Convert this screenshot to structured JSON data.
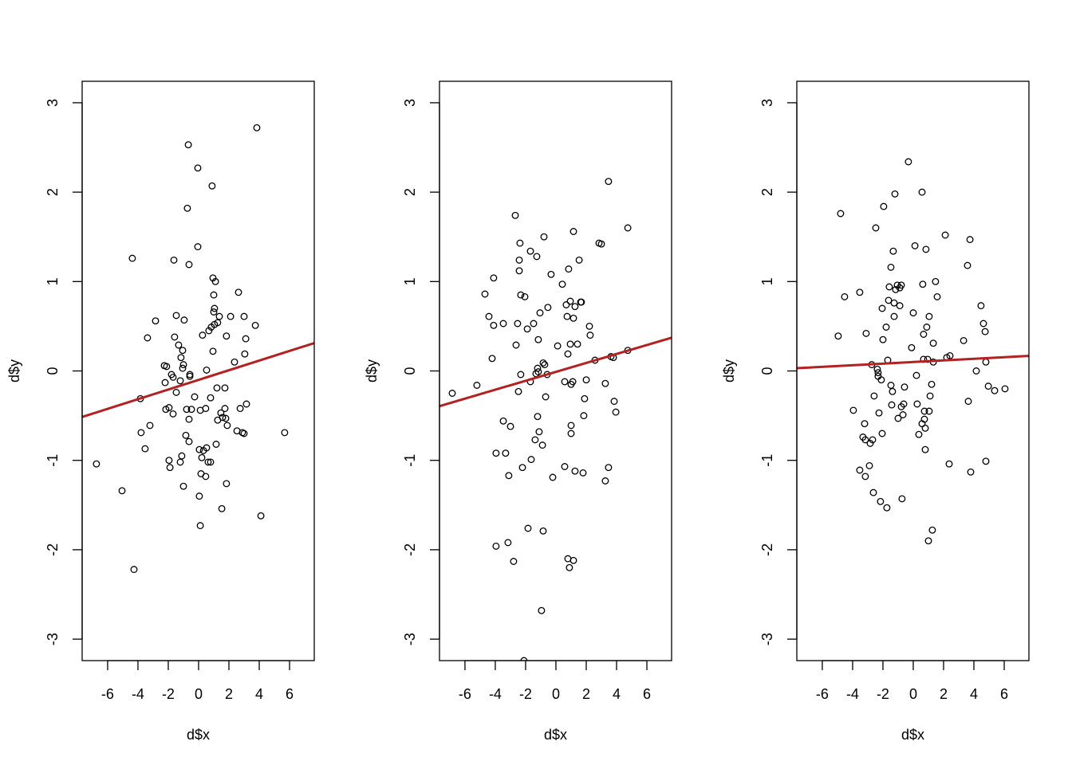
{
  "chart_data": [
    {
      "type": "scatter",
      "xlabel": "d$x",
      "ylabel": "d$y",
      "xlim": [
        -7.68,
        7.63
      ],
      "ylim": [
        -3.24,
        3.24
      ],
      "xticks": [
        -6,
        -4,
        -2,
        0,
        2,
        4,
        6
      ],
      "yticks": [
        -3,
        -2,
        -1,
        0,
        1,
        2,
        3
      ],
      "fit_line": {
        "intercept": -0.1,
        "slope": 0.054,
        "color": "#B22222"
      },
      "points": [
        [
          -6.74,
          -1.04
        ],
        [
          -5.05,
          -1.34
        ],
        [
          -4.37,
          1.26
        ],
        [
          -4.26,
          -2.22
        ],
        [
          -3.84,
          -0.31
        ],
        [
          -3.79,
          -0.69
        ],
        [
          -3.53,
          -0.87
        ],
        [
          -3.37,
          0.37
        ],
        [
          -3.21,
          -0.61
        ],
        [
          -2.84,
          0.56
        ],
        [
          -2.26,
          0.06
        ],
        [
          -2.11,
          0.05
        ],
        [
          -2.21,
          -0.13
        ],
        [
          -2.16,
          -0.43
        ],
        [
          -1.95,
          -0.41
        ],
        [
          -1.95,
          -1.0
        ],
        [
          -1.89,
          -1.08
        ],
        [
          -1.79,
          -0.04
        ],
        [
          -1.68,
          -0.07
        ],
        [
          -1.68,
          -0.48
        ],
        [
          -1.63,
          1.24
        ],
        [
          -1.58,
          0.38
        ],
        [
          -1.47,
          0.62
        ],
        [
          -1.47,
          -0.24
        ],
        [
          -1.32,
          0.29
        ],
        [
          -1.21,
          -0.11
        ],
        [
          -1.16,
          0.15
        ],
        [
          -1.21,
          -1.02
        ],
        [
          -1.11,
          -0.95
        ],
        [
          -1.05,
          0.23
        ],
        [
          -1.05,
          0.03
        ],
        [
          -1.0,
          0.07
        ],
        [
          -1.0,
          -1.29
        ],
        [
          -0.95,
          0.57
        ],
        [
          -0.84,
          -0.72
        ],
        [
          -0.79,
          -0.43
        ],
        [
          -0.68,
          2.53
        ],
        [
          -0.74,
          1.82
        ],
        [
          -0.63,
          -0.54
        ],
        [
          -0.63,
          -0.79
        ],
        [
          -0.63,
          1.19
        ],
        [
          -0.58,
          -0.04
        ],
        [
          -0.58,
          -0.06
        ],
        [
          -0.47,
          -0.43
        ],
        [
          -0.26,
          -0.29
        ],
        [
          -0.05,
          1.39
        ],
        [
          -0.05,
          2.27
        ],
        [
          0.05,
          -0.88
        ],
        [
          0.05,
          -1.4
        ],
        [
          0.11,
          -1.73
        ],
        [
          0.11,
          -0.44
        ],
        [
          0.16,
          -1.15
        ],
        [
          0.21,
          -0.97
        ],
        [
          0.26,
          0.4
        ],
        [
          0.32,
          -0.89
        ],
        [
          0.47,
          -0.42
        ],
        [
          0.47,
          -1.18
        ],
        [
          0.53,
          0.01
        ],
        [
          0.53,
          -0.86
        ],
        [
          0.63,
          -1.02
        ],
        [
          0.68,
          0.45
        ],
        [
          0.79,
          -1.02
        ],
        [
          0.79,
          -0.3
        ],
        [
          0.89,
          2.07
        ],
        [
          0.84,
          0.49
        ],
        [
          0.95,
          0.22
        ],
        [
          0.95,
          1.04
        ],
        [
          1.05,
          0.52
        ],
        [
          1.05,
          0.7
        ],
        [
          1.0,
          0.66
        ],
        [
          1.0,
          0.85
        ],
        [
          1.11,
          1.0
        ],
        [
          1.16,
          -0.82
        ],
        [
          1.21,
          -0.19
        ],
        [
          1.26,
          0.54
        ],
        [
          1.26,
          -0.55
        ],
        [
          1.37,
          0.61
        ],
        [
          1.47,
          -0.47
        ],
        [
          1.53,
          -1.54
        ],
        [
          1.58,
          -0.52
        ],
        [
          1.74,
          -0.19
        ],
        [
          1.74,
          -0.42
        ],
        [
          1.79,
          -0.53
        ],
        [
          1.84,
          -1.26
        ],
        [
          1.89,
          -0.61
        ],
        [
          1.84,
          0.39
        ],
        [
          2.11,
          0.61
        ],
        [
          2.37,
          0.1
        ],
        [
          2.53,
          -0.67
        ],
        [
          2.63,
          0.88
        ],
        [
          2.74,
          -0.42
        ],
        [
          2.89,
          -0.69
        ],
        [
          3.0,
          -0.7
        ],
        [
          3.0,
          0.61
        ],
        [
          3.05,
          0.19
        ],
        [
          3.11,
          0.36
        ],
        [
          3.16,
          -0.37
        ],
        [
          3.74,
          0.51
        ],
        [
          3.84,
          2.72
        ],
        [
          4.11,
          -1.62
        ],
        [
          5.68,
          -0.69
        ]
      ]
    },
    {
      "type": "scatter",
      "xlabel": "d$x",
      "ylabel": "d$y",
      "xlim": [
        -7.68,
        7.63
      ],
      "ylim": [
        -3.24,
        3.24
      ],
      "xticks": [
        -6,
        -4,
        -2,
        0,
        2,
        4,
        6
      ],
      "yticks": [
        -3,
        -2,
        -1,
        0,
        1,
        2,
        3
      ],
      "fit_line": {
        "intercept": -0.01,
        "slope": 0.05,
        "color": "#B22222"
      },
      "points": [
        [
          -6.84,
          -0.25
        ],
        [
          -5.21,
          -0.16
        ],
        [
          -4.68,
          0.86
        ],
        [
          -4.42,
          0.61
        ],
        [
          -4.11,
          1.04
        ],
        [
          -4.11,
          0.51
        ],
        [
          -4.21,
          0.14
        ],
        [
          -3.95,
          -0.92
        ],
        [
          -3.95,
          -1.96
        ],
        [
          -3.47,
          0.53
        ],
        [
          -3.47,
          -0.56
        ],
        [
          -3.32,
          -0.92
        ],
        [
          -3.16,
          -1.92
        ],
        [
          -3.11,
          -1.17
        ],
        [
          -3.0,
          -0.62
        ],
        [
          -2.79,
          -2.13
        ],
        [
          -2.68,
          1.74
        ],
        [
          -2.63,
          0.29
        ],
        [
          -2.53,
          0.53
        ],
        [
          -2.42,
          1.24
        ],
        [
          -2.42,
          1.12
        ],
        [
          -2.47,
          -0.23
        ],
        [
          -2.37,
          1.43
        ],
        [
          -2.32,
          -0.04
        ],
        [
          -2.32,
          0.85
        ],
        [
          -2.21,
          -1.08
        ],
        [
          -2.11,
          -3.24
        ],
        [
          -2.05,
          0.83
        ],
        [
          -1.89,
          0.47
        ],
        [
          -1.84,
          -1.76
        ],
        [
          -1.68,
          1.34
        ],
        [
          -1.68,
          -0.12
        ],
        [
          -1.63,
          -0.99
        ],
        [
          -1.47,
          0.53
        ],
        [
          -1.32,
          -0.03
        ],
        [
          -1.37,
          -0.77
        ],
        [
          -1.26,
          1.28
        ],
        [
          -1.21,
          0.03
        ],
        [
          -1.21,
          -0.51
        ],
        [
          -1.16,
          0.35
        ],
        [
          -1.16,
          -0.01
        ],
        [
          -1.11,
          -0.68
        ],
        [
          -1.05,
          0.65
        ],
        [
          -0.95,
          -2.68
        ],
        [
          -0.89,
          -0.83
        ],
        [
          -0.84,
          -1.79
        ],
        [
          -0.84,
          0.09
        ],
        [
          -0.79,
          1.5
        ],
        [
          -0.74,
          0.07
        ],
        [
          -0.68,
          -0.29
        ],
        [
          -0.53,
          0.71
        ],
        [
          -0.58,
          -0.04
        ],
        [
          -0.32,
          1.08
        ],
        [
          -0.21,
          -1.19
        ],
        [
          0.11,
          0.28
        ],
        [
          0.42,
          0.97
        ],
        [
          0.58,
          -1.07
        ],
        [
          0.58,
          -0.12
        ],
        [
          0.68,
          0.74
        ],
        [
          0.74,
          0.61
        ],
        [
          0.79,
          0.19
        ],
        [
          0.84,
          1.14
        ],
        [
          0.79,
          -2.1
        ],
        [
          0.89,
          -2.2
        ],
        [
          0.95,
          0.3
        ],
        [
          1.0,
          -0.7
        ],
        [
          0.95,
          0.78
        ],
        [
          1.0,
          -0.15
        ],
        [
          1.0,
          -0.61
        ],
        [
          1.11,
          -0.12
        ],
        [
          1.16,
          -2.12
        ],
        [
          1.16,
          1.56
        ],
        [
          1.16,
          0.59
        ],
        [
          1.26,
          -1.12
        ],
        [
          1.26,
          0.72
        ],
        [
          1.42,
          0.3
        ],
        [
          1.53,
          1.24
        ],
        [
          1.63,
          0.77
        ],
        [
          1.68,
          0.77
        ],
        [
          1.79,
          -1.14
        ],
        [
          1.84,
          -0.5
        ],
        [
          1.89,
          -0.31
        ],
        [
          2.0,
          -0.1
        ],
        [
          2.21,
          0.5
        ],
        [
          2.26,
          0.4
        ],
        [
          2.58,
          0.12
        ],
        [
          2.84,
          1.43
        ],
        [
          3.0,
          1.42
        ],
        [
          3.26,
          -0.14
        ],
        [
          3.26,
          -1.23
        ],
        [
          3.47,
          2.12
        ],
        [
          3.47,
          -1.08
        ],
        [
          3.63,
          0.16
        ],
        [
          3.79,
          0.15
        ],
        [
          3.84,
          -0.34
        ],
        [
          3.95,
          -0.46
        ],
        [
          4.74,
          1.6
        ],
        [
          4.74,
          0.23
        ]
      ]
    },
    {
      "type": "scatter",
      "xlabel": "d$x",
      "ylabel": "d$y",
      "xlim": [
        -7.68,
        7.63
      ],
      "ylim": [
        -3.24,
        3.24
      ],
      "xticks": [
        -6,
        -4,
        -2,
        0,
        2,
        4,
        6
      ],
      "yticks": [
        -3,
        -2,
        -1,
        0,
        1,
        2,
        3
      ],
      "fit_line": {
        "intercept": 0.1,
        "slope": 0.009,
        "color": "#B22222"
      },
      "points": [
        [
          -4.95,
          0.39
        ],
        [
          -4.79,
          1.76
        ],
        [
          -4.53,
          0.83
        ],
        [
          -3.95,
          -0.44
        ],
        [
          -3.53,
          0.88
        ],
        [
          -3.53,
          -1.11
        ],
        [
          -3.32,
          -0.74
        ],
        [
          -3.16,
          -1.18
        ],
        [
          -3.21,
          -0.59
        ],
        [
          -3.16,
          -0.77
        ],
        [
          -3.11,
          0.42
        ],
        [
          -2.89,
          -1.06
        ],
        [
          -2.84,
          -0.81
        ],
        [
          -2.74,
          0.07
        ],
        [
          -2.68,
          -0.77
        ],
        [
          -2.63,
          -1.36
        ],
        [
          -2.58,
          -0.28
        ],
        [
          -2.47,
          1.6
        ],
        [
          -2.37,
          0.02
        ],
        [
          -2.32,
          -0.02
        ],
        [
          -2.26,
          -0.47
        ],
        [
          -2.32,
          -0.06
        ],
        [
          -2.16,
          -1.46
        ],
        [
          -2.05,
          -0.7
        ],
        [
          -2.11,
          -0.1
        ],
        [
          -2.05,
          0.7
        ],
        [
          -2.0,
          0.35
        ],
        [
          -1.95,
          1.84
        ],
        [
          -1.79,
          0.49
        ],
        [
          -1.74,
          -1.53
        ],
        [
          -1.68,
          0.12
        ],
        [
          -1.63,
          0.79
        ],
        [
          -1.58,
          0.94
        ],
        [
          -1.47,
          1.16
        ],
        [
          -1.47,
          -0.16
        ],
        [
          -1.42,
          -0.38
        ],
        [
          -1.37,
          -0.23
        ],
        [
          -1.32,
          1.34
        ],
        [
          -1.26,
          0.61
        ],
        [
          -1.26,
          0.76
        ],
        [
          -1.21,
          1.98
        ],
        [
          -1.16,
          0.91
        ],
        [
          -1.05,
          0.96
        ],
        [
          -1.0,
          -0.53
        ],
        [
          -0.89,
          0.73
        ],
        [
          -0.89,
          0.93
        ],
        [
          -0.79,
          0.96
        ],
        [
          -0.79,
          -0.4
        ],
        [
          -0.74,
          -1.43
        ],
        [
          -0.68,
          -0.49
        ],
        [
          -0.63,
          -0.37
        ],
        [
          -0.58,
          -0.18
        ],
        [
          -0.32,
          2.34
        ],
        [
          -0.11,
          0.26
        ],
        [
          0.0,
          0.65
        ],
        [
          0.11,
          1.4
        ],
        [
          0.21,
          -0.05
        ],
        [
          0.26,
          -0.37
        ],
        [
          0.37,
          -0.71
        ],
        [
          0.58,
          2.0
        ],
        [
          0.58,
          -0.59
        ],
        [
          0.63,
          0.97
        ],
        [
          0.68,
          0.41
        ],
        [
          0.68,
          0.13
        ],
        [
          0.74,
          -0.54
        ],
        [
          0.74,
          -0.45
        ],
        [
          0.79,
          -0.88
        ],
        [
          0.79,
          -0.64
        ],
        [
          0.84,
          1.36
        ],
        [
          0.89,
          0.49
        ],
        [
          0.95,
          0.13
        ],
        [
          1.0,
          -1.9
        ],
        [
          1.05,
          -0.45
        ],
        [
          1.05,
          0.61
        ],
        [
          1.11,
          -0.28
        ],
        [
          1.21,
          -0.15
        ],
        [
          1.26,
          -1.78
        ],
        [
          1.32,
          0.1
        ],
        [
          1.32,
          0.31
        ],
        [
          1.47,
          1.0
        ],
        [
          1.58,
          0.83
        ],
        [
          2.11,
          1.52
        ],
        [
          2.21,
          0.15
        ],
        [
          2.42,
          0.17
        ],
        [
          2.37,
          -1.04
        ],
        [
          3.32,
          0.34
        ],
        [
          3.58,
          1.18
        ],
        [
          3.63,
          -0.34
        ],
        [
          3.74,
          1.47
        ],
        [
          3.79,
          -1.13
        ],
        [
          4.16,
          0.0
        ],
        [
          4.47,
          0.73
        ],
        [
          4.63,
          0.53
        ],
        [
          4.74,
          0.44
        ],
        [
          4.79,
          -1.01
        ],
        [
          4.79,
          0.1
        ],
        [
          4.95,
          -0.17
        ],
        [
          5.37,
          -0.22
        ],
        [
          6.05,
          -0.2
        ]
      ]
    }
  ]
}
